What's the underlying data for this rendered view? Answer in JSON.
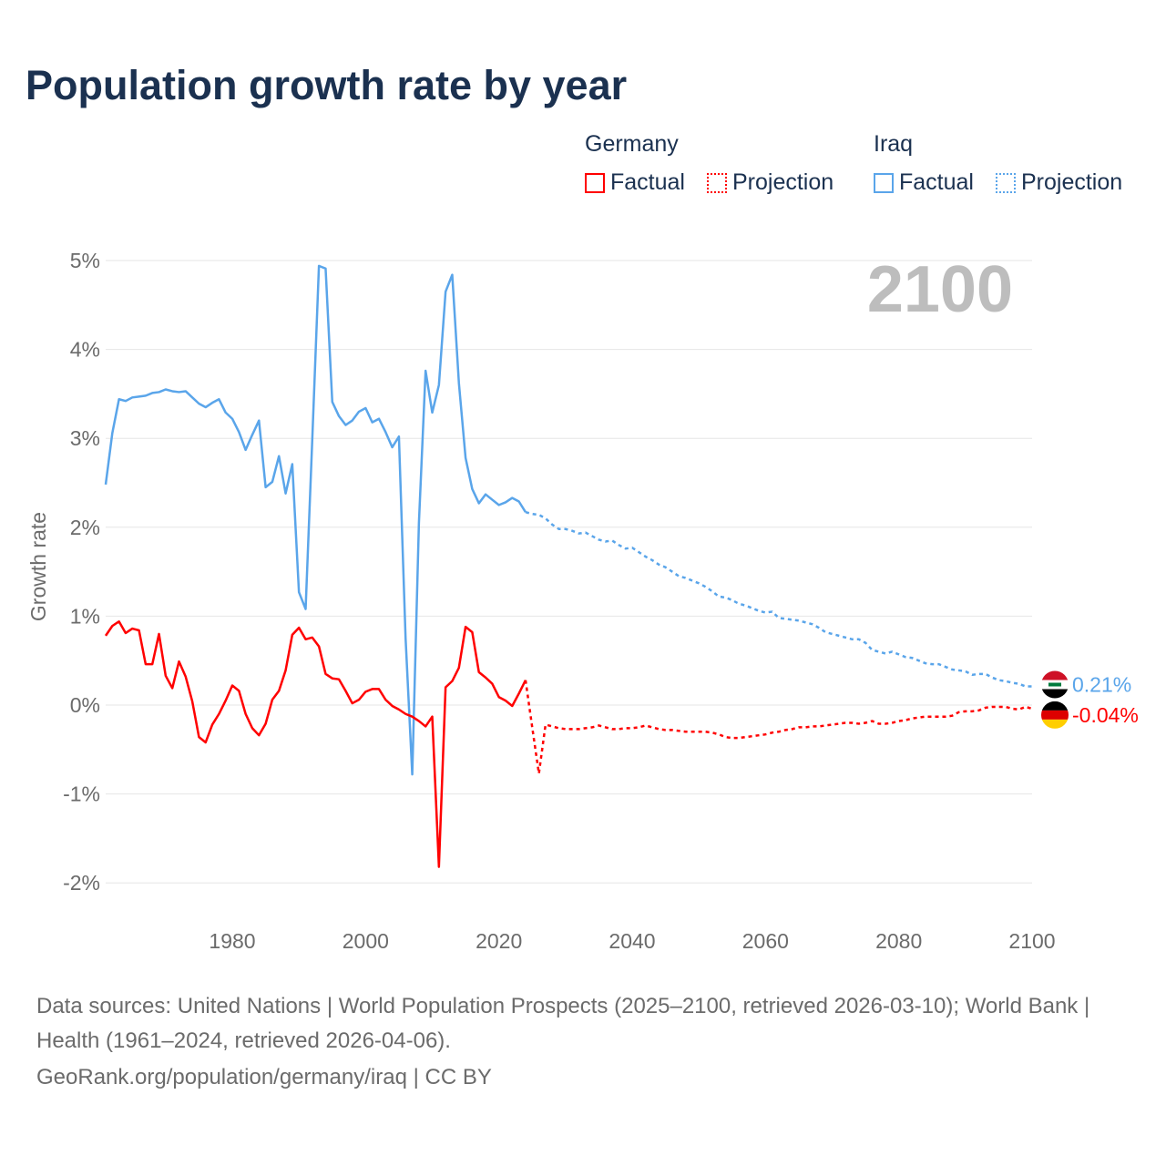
{
  "title": "Population growth rate by year",
  "legend": {
    "groups": [
      {
        "name": "Germany",
        "items": [
          {
            "label": "Factual"
          },
          {
            "label": "Projection"
          }
        ]
      },
      {
        "name": "Iraq",
        "items": [
          {
            "label": "Factual"
          },
          {
            "label": "Projection"
          }
        ]
      }
    ]
  },
  "colors": {
    "germany": "#ff0000",
    "iraq": "#5aa5ea",
    "grid": "#e6e6e6",
    "year_watermark": "#bdbdbd"
  },
  "footer": {
    "sources": "Data sources: United Nations | World Population Prospects (2025–2100, retrieved 2026-03-10); World Bank | Health (1961–2024, retrieved 2026-04-06).",
    "link": "GeoRank.org/population/germany/iraq | CC BY"
  },
  "chart_data": {
    "type": "line",
    "title": "Population growth rate by year",
    "xlabel": "",
    "ylabel": "Growth rate",
    "xlim": [
      1961,
      2100
    ],
    "ylim": [
      -2.5,
      5.2
    ],
    "current_year_label": "2100",
    "x_ticks": [
      "1980",
      "2000",
      "2020",
      "2040",
      "2060",
      "2080",
      "2100"
    ],
    "x_tick_values": [
      1980,
      2000,
      2020,
      2040,
      2060,
      2080,
      2100
    ],
    "y_ticks": [
      "-2%",
      "-1%",
      "0%",
      "1%",
      "2%",
      "3%",
      "4%",
      "5%"
    ],
    "y_tick_values": [
      -2,
      -1,
      0,
      1,
      2,
      3,
      4,
      5
    ],
    "grid": true,
    "series": [
      {
        "name": "Iraq",
        "flag": "iraq-flag",
        "end_label": "0.21%",
        "factual_start": 1961,
        "factual": [
          2.48,
          3.06,
          3.44,
          3.42,
          3.46,
          3.47,
          3.48,
          3.51,
          3.52,
          3.55,
          3.53,
          3.52,
          3.53,
          3.46,
          3.39,
          3.35,
          3.4,
          3.44,
          3.29,
          3.22,
          3.07,
          2.87,
          3.04,
          3.2,
          2.45,
          2.51,
          2.8,
          2.38,
          2.71,
          1.27,
          1.08,
          2.99,
          4.94,
          4.91,
          3.41,
          3.25,
          3.15,
          3.2,
          3.3,
          3.34,
          3.18,
          3.22,
          3.07,
          2.9,
          3.02,
          0.75,
          -0.78,
          2.05,
          3.76,
          3.29,
          3.6,
          4.65,
          4.84,
          3.62,
          2.78,
          2.43,
          2.27,
          2.37,
          2.31,
          2.25,
          2.28,
          2.33,
          2.29,
          2.17
        ],
        "projection_start": 2025,
        "projection": [
          2.15,
          2.14,
          2.1,
          2.03,
          1.98,
          1.98,
          1.96,
          1.93,
          1.94,
          1.9,
          1.86,
          1.84,
          1.85,
          1.8,
          1.76,
          1.77,
          1.72,
          1.67,
          1.63,
          1.58,
          1.55,
          1.5,
          1.45,
          1.43,
          1.4,
          1.37,
          1.33,
          1.28,
          1.22,
          1.21,
          1.18,
          1.14,
          1.12,
          1.09,
          1.06,
          1.04,
          1.05,
          0.98,
          0.97,
          0.96,
          0.95,
          0.93,
          0.91,
          0.87,
          0.82,
          0.8,
          0.78,
          0.76,
          0.74,
          0.74,
          0.7,
          0.62,
          0.6,
          0.58,
          0.6,
          0.57,
          0.54,
          0.53,
          0.5,
          0.47,
          0.46,
          0.46,
          0.43,
          0.4,
          0.39,
          0.38,
          0.34,
          0.35,
          0.35,
          0.31,
          0.28,
          0.27,
          0.25,
          0.24,
          0.21,
          0.21
        ]
      },
      {
        "name": "Germany",
        "flag": "germany-flag",
        "end_label": "-0.04%",
        "factual_start": 1961,
        "factual": [
          0.78,
          0.89,
          0.94,
          0.81,
          0.86,
          0.84,
          0.46,
          0.46,
          0.8,
          0.33,
          0.19,
          0.49,
          0.32,
          0.04,
          -0.36,
          -0.42,
          -0.22,
          -0.1,
          0.05,
          0.22,
          0.16,
          -0.1,
          -0.26,
          -0.34,
          -0.21,
          0.06,
          0.16,
          0.39,
          0.79,
          0.87,
          0.74,
          0.76,
          0.66,
          0.35,
          0.3,
          0.29,
          0.16,
          0.02,
          0.06,
          0.15,
          0.18,
          0.18,
          0.06,
          -0.01,
          -0.05,
          -0.1,
          -0.13,
          -0.18,
          -0.24,
          -0.13,
          -1.82,
          0.2,
          0.27,
          0.42,
          0.88,
          0.82,
          0.37,
          0.31,
          0.24,
          0.09,
          0.05,
          -0.01,
          0.13,
          0.28
        ],
        "projection_start": 2025,
        "projection": [
          -0.25,
          -0.77,
          -0.22,
          -0.24,
          -0.26,
          -0.27,
          -0.27,
          -0.27,
          -0.26,
          -0.25,
          -0.23,
          -0.25,
          -0.27,
          -0.27,
          -0.26,
          -0.26,
          -0.25,
          -0.23,
          -0.25,
          -0.27,
          -0.28,
          -0.28,
          -0.29,
          -0.3,
          -0.3,
          -0.3,
          -0.3,
          -0.31,
          -0.33,
          -0.36,
          -0.37,
          -0.37,
          -0.36,
          -0.35,
          -0.34,
          -0.33,
          -0.31,
          -0.3,
          -0.28,
          -0.27,
          -0.25,
          -0.25,
          -0.24,
          -0.24,
          -0.23,
          -0.22,
          -0.21,
          -0.2,
          -0.2,
          -0.21,
          -0.2,
          -0.18,
          -0.21,
          -0.21,
          -0.2,
          -0.18,
          -0.17,
          -0.15,
          -0.14,
          -0.13,
          -0.13,
          -0.13,
          -0.13,
          -0.12,
          -0.08,
          -0.07,
          -0.07,
          -0.06,
          -0.03,
          -0.02,
          -0.02,
          -0.02,
          -0.04,
          -0.05,
          -0.02,
          -0.04
        ]
      }
    ]
  }
}
